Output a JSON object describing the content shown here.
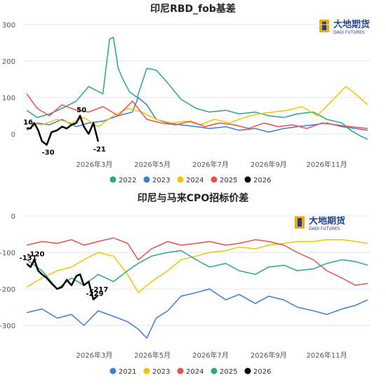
{
  "chart_data": [
    {
      "type": "line",
      "title": "印尼RBD_fob基差",
      "logo": {
        "cn": "大地期货",
        "en": "DADI FUTURES"
      },
      "xlabel": "",
      "ylabel": "",
      "ylim": [
        -50,
        300
      ],
      "yticks": [
        "300",
        "200",
        "100",
        "0"
      ],
      "xticks": [
        "2026年3月",
        "2026年5月",
        "2026年7月",
        "2026年9月",
        "2026年11月"
      ],
      "grid": true,
      "legend": "bottom",
      "colors": {
        "2022": "#2ca58d",
        "2023": "#3b7dd8",
        "2024": "#f2c500",
        "2025": "#e8514d",
        "2026": "#000000"
      },
      "series": [
        {
          "name": "2022",
          "x": [
            "01-04",
            "01-15",
            "01-28",
            "02-10",
            "02-25",
            "03-10",
            "03-25",
            "04-01",
            "04-05",
            "04-10",
            "04-15",
            "04-22",
            "04-30",
            "05-10",
            "05-20",
            "06-01",
            "06-15",
            "07-01",
            "07-15",
            "08-01",
            "08-15",
            "09-01",
            "09-15",
            "10-01",
            "10-15",
            "11-01",
            "11-15",
            "12-01",
            "12-10",
            "12-20",
            "12-28"
          ],
          "y": [
            65,
            45,
            55,
            70,
            90,
            130,
            110,
            260,
            265,
            180,
            150,
            115,
            100,
            180,
            175,
            140,
            95,
            70,
            60,
            65,
            55,
            60,
            50,
            45,
            55,
            60,
            40,
            30,
            10,
            -5,
            -15
          ]
        },
        {
          "name": "2023",
          "x": [
            "01-04",
            "01-15",
            "01-28",
            "02-10",
            "02-25",
            "03-10",
            "03-25",
            "04-10",
            "04-25",
            "05-01",
            "05-10",
            "05-20",
            "06-01",
            "06-15",
            "07-01",
            "07-15",
            "08-01",
            "08-15",
            "09-01",
            "09-15",
            "10-01",
            "10-15",
            "11-01",
            "11-15",
            "12-01",
            "12-15",
            "12-28"
          ],
          "y": [
            10,
            30,
            25,
            40,
            20,
            30,
            35,
            50,
            60,
            100,
            80,
            40,
            30,
            25,
            20,
            15,
            20,
            10,
            15,
            5,
            15,
            20,
            25,
            30,
            20,
            15,
            10
          ]
        },
        {
          "name": "2024",
          "x": [
            "01-04",
            "01-20",
            "02-05",
            "02-20",
            "03-05",
            "03-20",
            "04-05",
            "04-20",
            "05-05",
            "05-20",
            "06-05",
            "06-20",
            "07-05",
            "07-20",
            "08-05",
            "08-20",
            "09-05",
            "09-20",
            "10-05",
            "10-20",
            "11-05",
            "11-20",
            "12-05",
            "12-15",
            "12-28"
          ],
          "y": [
            30,
            25,
            40,
            30,
            45,
            20,
            50,
            70,
            60,
            40,
            30,
            35,
            25,
            40,
            30,
            45,
            55,
            60,
            65,
            75,
            50,
            90,
            130,
            110,
            80
          ]
        },
        {
          "name": "2025",
          "x": [
            "01-04",
            "01-15",
            "01-28",
            "02-10",
            "02-25",
            "03-10",
            "03-25",
            "04-10",
            "04-25",
            "05-10",
            "05-25",
            "06-10",
            "06-25",
            "07-10",
            "07-25",
            "08-10",
            "08-25",
            "09-10",
            "09-25",
            "10-10",
            "10-25",
            "11-10",
            "11-25",
            "12-10",
            "12-28"
          ],
          "y": [
            110,
            70,
            50,
            80,
            65,
            60,
            75,
            50,
            90,
            40,
            30,
            25,
            35,
            20,
            30,
            25,
            15,
            30,
            20,
            25,
            15,
            30,
            25,
            20,
            15
          ]
        },
        {
          "name": "2026",
          "x": [
            "01-04",
            "01-08",
            "01-12",
            "01-16",
            "01-20",
            "01-25",
            "01-30",
            "02-05",
            "02-10",
            "02-15",
            "02-20",
            "02-25",
            "03-01",
            "03-05",
            "03-10",
            "03-15",
            "03-20"
          ],
          "y": [
            16,
            15,
            30,
            10,
            -20,
            -30,
            5,
            10,
            20,
            15,
            25,
            30,
            50,
            20,
            0,
            30,
            -21
          ]
        }
      ],
      "annotations": [
        {
          "text": "16",
          "x": "01-04",
          "y": 16
        },
        {
          "text": "-30",
          "x": "01-25",
          "y": -30
        },
        {
          "text": "50",
          "x": "03-01",
          "y": 50
        },
        {
          "text": "-21",
          "x": "03-20",
          "y": -21
        }
      ]
    },
    {
      "type": "line",
      "title": "印尼与马来CPO招标价差",
      "logo": {
        "cn": "大地期货",
        "en": "DADI FUTURES"
      },
      "xlabel": "",
      "ylabel": "",
      "ylim": [
        -350,
        0
      ],
      "yticks": [
        "0",
        "-100",
        "-200",
        "-300"
      ],
      "xticks": [
        "2026年3月",
        "2026年5月",
        "2026年7月",
        "2026年9月",
        "2026年11月"
      ],
      "grid": true,
      "legend": "bottom",
      "colors": {
        "2021": "#3b7dd8",
        "2023": "#f2c500",
        "2024": "#e8514d",
        "2025": "#2ca58d",
        "2026": "#000000"
      },
      "series": [
        {
          "name": "2021",
          "x": [
            "01-04",
            "01-20",
            "02-05",
            "02-20",
            "03-05",
            "03-20",
            "04-05",
            "04-20",
            "05-01",
            "05-10",
            "05-20",
            "06-01",
            "06-15",
            "07-01",
            "07-15",
            "08-01",
            "08-15",
            "09-01",
            "09-15",
            "10-01",
            "10-15",
            "11-01",
            "11-15",
            "12-01",
            "12-15",
            "12-28"
          ],
          "y": [
            -265,
            -255,
            -280,
            -270,
            -300,
            -260,
            -275,
            -290,
            -310,
            -335,
            -280,
            -260,
            -220,
            -210,
            -200,
            -230,
            -215,
            -240,
            -220,
            -230,
            -250,
            -260,
            -270,
            -255,
            -245,
            -230
          ]
        },
        {
          "name": "2023",
          "x": [
            "01-04",
            "01-20",
            "02-05",
            "02-20",
            "03-05",
            "03-20",
            "04-05",
            "04-20",
            "05-01",
            "05-15",
            "06-01",
            "06-15",
            "07-01",
            "07-15",
            "08-01",
            "08-15",
            "09-01",
            "09-15",
            "10-01",
            "10-15",
            "11-01",
            "11-15",
            "12-01",
            "12-15",
            "12-28"
          ],
          "y": [
            -195,
            -170,
            -150,
            -140,
            -120,
            -100,
            -110,
            -160,
            -210,
            -180,
            -150,
            -120,
            -110,
            -100,
            -95,
            -85,
            -90,
            -80,
            -75,
            -70,
            -70,
            -65,
            -65,
            -70,
            -75
          ]
        },
        {
          "name": "2024",
          "x": [
            "01-04",
            "01-20",
            "02-05",
            "02-20",
            "03-05",
            "03-20",
            "04-05",
            "04-20",
            "05-01",
            "05-15",
            "06-01",
            "06-15",
            "07-01",
            "07-15",
            "08-01",
            "08-15",
            "09-01",
            "09-15",
            "10-01",
            "10-15",
            "11-01",
            "11-15",
            "12-01",
            "12-15",
            "12-28"
          ],
          "y": [
            -80,
            -70,
            -75,
            -65,
            -80,
            -70,
            -60,
            -75,
            -120,
            -90,
            -70,
            -80,
            -75,
            -70,
            -80,
            -75,
            -65,
            -70,
            -80,
            -100,
            -120,
            -150,
            -170,
            -190,
            -185
          ]
        },
        {
          "name": "2025",
          "x": [
            "01-04",
            "01-20",
            "02-05",
            "02-20",
            "03-05",
            "03-20",
            "04-05",
            "04-20",
            "05-01",
            "05-15",
            "06-01",
            "06-15",
            "07-01",
            "07-15",
            "08-01",
            "08-15",
            "09-01",
            "09-15",
            "10-01",
            "10-15",
            "11-01",
            "11-15",
            "12-01",
            "12-15",
            "12-28"
          ],
          "y": [
            -120,
            -150,
            -200,
            -170,
            -190,
            -160,
            -180,
            -150,
            -130,
            -110,
            -100,
            -95,
            -120,
            -140,
            -130,
            -150,
            -160,
            -140,
            -135,
            -150,
            -145,
            -130,
            -120,
            -125,
            -135
          ]
        },
        {
          "name": "2026",
          "x": [
            "01-04",
            "01-08",
            "01-12",
            "01-16",
            "01-20",
            "01-25",
            "01-30",
            "02-05",
            "02-10",
            "02-15",
            "02-20",
            "02-25",
            "03-01",
            "03-05",
            "03-10",
            "03-15",
            "03-20"
          ],
          "y": [
            -131,
            -140,
            -120,
            -150,
            -160,
            -170,
            -185,
            -200,
            -195,
            -175,
            -190,
            -165,
            -160,
            -190,
            -180,
            -229,
            -217
          ]
        }
      ],
      "annotations": [
        {
          "text": "-131",
          "x": "01-04",
          "y": -131
        },
        {
          "text": "-120",
          "x": "01-12",
          "y": -120
        },
        {
          "text": "-217",
          "x": "03-20",
          "y": -217
        },
        {
          "text": "-229",
          "x": "03-15",
          "y": -229
        }
      ]
    }
  ]
}
